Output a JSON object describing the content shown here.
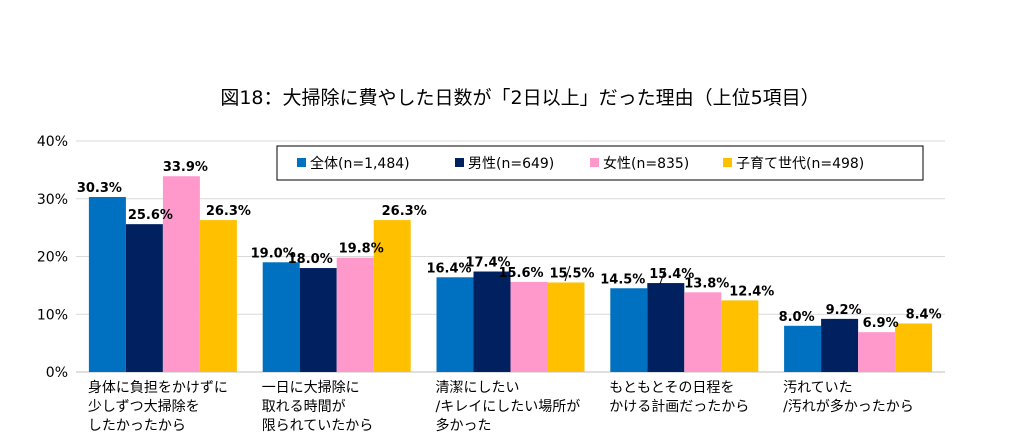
{
  "chart_data": {
    "type": "bar",
    "title": "図18：大掃除に費やした日数が「2日以上」だった理由（上位5項目）",
    "xlabel": "",
    "ylabel": "",
    "ylim": [
      0,
      40
    ],
    "yticks": [
      "0%",
      "10%",
      "20%",
      "30%",
      "40%"
    ],
    "grid": true,
    "legend_position": "top-right",
    "categories": [
      [
        "身体に負担をかけずに",
        "少しずつ大掃除を",
        "したかったから"
      ],
      [
        "一日に大掃除に",
        "取れる時間が",
        "限られていたから"
      ],
      [
        "清潔にしたい",
        "/キレイにしたい場所が",
        "多かった"
      ],
      [
        "もともとその日程を",
        "かける計画だったから"
      ],
      [
        "汚れていた",
        "/汚れが多かったから"
      ]
    ],
    "series": [
      {
        "name": "全体(n=1,484)",
        "color": "#0070c0",
        "values": [
          30.3,
          19.0,
          16.4,
          14.5,
          8.0
        ],
        "labels": [
          "30.3%",
          "19.0%",
          "16.4%",
          "14.5%",
          "8.0%"
        ]
      },
      {
        "name": "男性(n=649)",
        "color": "#002060",
        "values": [
          25.6,
          18.0,
          17.4,
          15.4,
          9.2
        ],
        "labels": [
          "25.6%",
          "18.0%",
          "17.4%",
          "15.4%",
          "9.2%"
        ]
      },
      {
        "name": "女性(n=835)",
        "color": "#ff99cc",
        "values": [
          33.9,
          19.8,
          15.6,
          13.8,
          6.9
        ],
        "labels": [
          "33.9%",
          "19.8%",
          "15.6%",
          "13.8%",
          "6.9%"
        ]
      },
      {
        "name": "子育て世代(n=498)",
        "color": "#ffc000",
        "values": [
          26.3,
          26.3,
          15.5,
          12.4,
          8.4
        ],
        "labels": [
          "26.3%",
          "26.3%",
          "15.5%",
          "12.4%",
          "8.4%"
        ]
      }
    ]
  }
}
